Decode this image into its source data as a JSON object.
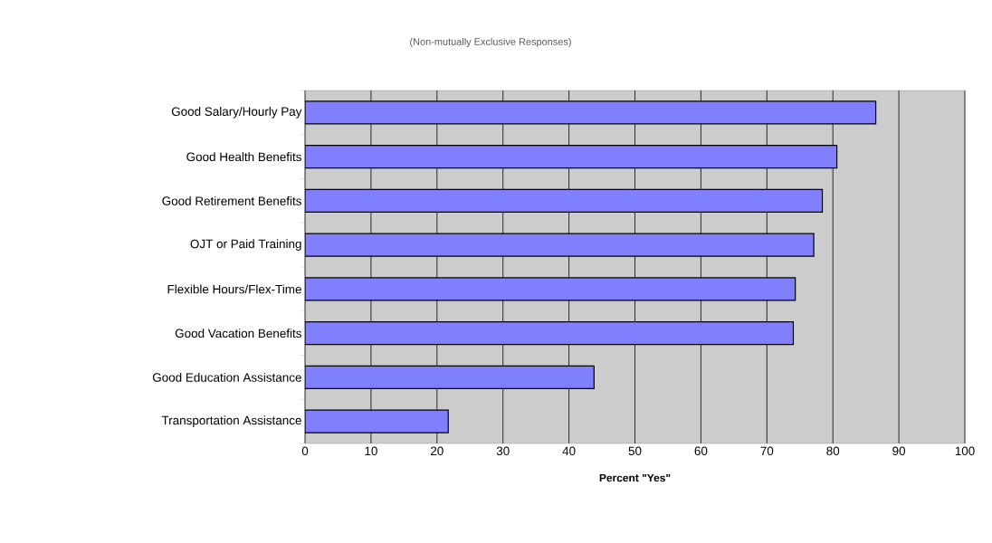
{
  "chart_data": {
    "type": "bar",
    "orientation": "horizontal",
    "subtitle": "(Non-mutually Exclusive Responses)",
    "xlabel": "Percent \"Yes\"",
    "categories": [
      "Good Salary/Hourly Pay",
      "Good Health Benefits",
      "Good Retirement Benefits",
      "OJT or Paid Training",
      "Flexible Hours/Flex-Time",
      "Good Vacation Benefits",
      "Good Education Assistance",
      "Transportation Assistance"
    ],
    "values": [
      86.5,
      80.6,
      78.4,
      77.1,
      74.3,
      74.0,
      43.8,
      21.7
    ],
    "color": "#8080ff",
    "xlim": [
      0,
      100
    ],
    "xticks": [
      0,
      10,
      20,
      30,
      40,
      50,
      60,
      70,
      80,
      90,
      100
    ],
    "grid": "x"
  }
}
